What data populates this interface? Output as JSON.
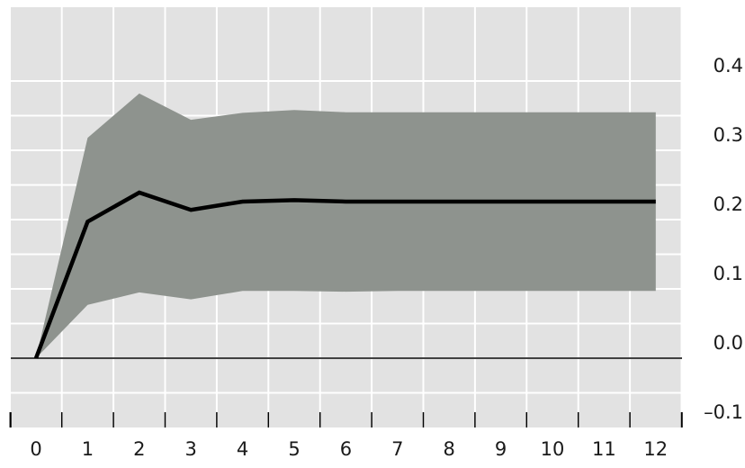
{
  "chart_data": {
    "type": "area",
    "title": "",
    "xlabel": "",
    "ylabel": "",
    "x": [
      0,
      1,
      2,
      3,
      4,
      5,
      6,
      7,
      8,
      9,
      10,
      11,
      12
    ],
    "xticks": [
      "0",
      "1",
      "2",
      "3",
      "4",
      "5",
      "6",
      "7",
      "8",
      "9",
      "10",
      "11",
      "12"
    ],
    "yticks": [
      "0.4",
      "0.3",
      "0.2",
      "0.1",
      "0.0",
      "–0.1"
    ],
    "ytick_values": [
      0.4,
      0.3,
      0.2,
      0.1,
      0.0,
      -0.1
    ],
    "ylim": [
      -0.1,
      0.44
    ],
    "xlim": [
      0,
      12.5
    ],
    "grid": true,
    "y_axis_side": "right",
    "series": [
      {
        "kind": "band",
        "lower": [
          0.0,
          0.077,
          0.095,
          0.085,
          0.097,
          0.097,
          0.096,
          0.097,
          0.097,
          0.097,
          0.097,
          0.097,
          0.097
        ],
        "upper": [
          0.0,
          0.318,
          0.382,
          0.344,
          0.354,
          0.358,
          0.355,
          0.355,
          0.355,
          0.355,
          0.355,
          0.355,
          0.355
        ]
      },
      {
        "kind": "line",
        "values": [
          0.0,
          0.197,
          0.239,
          0.214,
          0.226,
          0.228,
          0.226,
          0.226,
          0.226,
          0.226,
          0.226,
          0.226,
          0.226
        ]
      }
    ],
    "colors": {
      "plot_background": "#e2e2e2",
      "grid": "#ffffff",
      "band": "#8e938e",
      "line": "#000000",
      "axis": "#000000"
    }
  }
}
